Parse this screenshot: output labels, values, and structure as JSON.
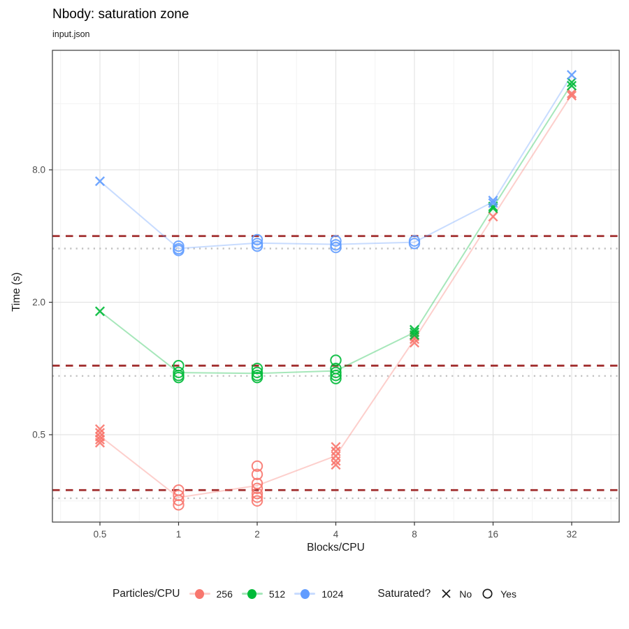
{
  "header": {
    "title": "Nbody: saturation zone",
    "subtitle": "input.json"
  },
  "legend": {
    "series_title": "Particles/CPU",
    "series": [
      {
        "label": "256"
      },
      {
        "label": "512"
      },
      {
        "label": "1024"
      }
    ],
    "saturated_title": "Saturated?",
    "no_label": "No",
    "yes_label": "Yes"
  },
  "chart_data": {
    "type": "scatter",
    "title": "Nbody: saturation zone",
    "subtitle": "input.json",
    "xlabel": "Blocks/CPU",
    "ylabel": "Time (s)",
    "x_scale": "log2",
    "y_scale": "log2",
    "xlim": [
      0.33,
      48
    ],
    "ylim": [
      0.21,
      26
    ],
    "x_ticks": [
      0.5,
      1,
      2,
      4,
      8,
      16,
      32
    ],
    "x_tick_labels": [
      "0.5",
      "1",
      "2",
      "4",
      "8",
      "16",
      "32"
    ],
    "y_ticks": [
      8.0,
      2.0,
      0.5
    ],
    "y_tick_labels": [
      "8.0",
      "2.0",
      "0.5"
    ],
    "y_minor_ticks": [
      16,
      4,
      1,
      0.25
    ],
    "grid": true,
    "legend_position": "bottom",
    "colors": {
      "dashed_reference": "#A02C2C",
      "dotted_reference": "#C2C2C2",
      "grid_major": "#E4E4E4",
      "grid_minor": "#F3F3F3",
      "panel_border": "#3A3A3A",
      "tick_text": "#4D4D4D"
    },
    "marker_legend": {
      "x_marker": "No",
      "o_marker": "Yes"
    },
    "series": [
      {
        "name": "256",
        "color": "#F8766D",
        "dashed_reference_time": 0.28,
        "dotted_reference_time": 0.257,
        "clusters": [
          {
            "x": 0.5,
            "saturated": "No",
            "times": [
              0.53,
              0.51,
              0.49,
              0.475,
              0.46
            ]
          },
          {
            "x": 1,
            "saturated": "Yes",
            "times": [
              0.28,
              0.265,
              0.252,
              0.24
            ]
          },
          {
            "x": 2,
            "saturated": "Yes",
            "times": [
              0.36,
              0.33,
              0.3,
              0.285,
              0.27,
              0.26,
              0.25
            ]
          },
          {
            "x": 4,
            "saturated": "No",
            "times": [
              0.44,
              0.42,
              0.4,
              0.38,
              0.365
            ]
          },
          {
            "x": 8,
            "saturated": "No",
            "times": [
              1.4,
              1.36,
              1.31
            ]
          },
          {
            "x": 16,
            "saturated": "No",
            "times": [
              4.9
            ]
          },
          {
            "x": 32,
            "saturated": "No",
            "times": [
              17.8,
              17.4
            ]
          }
        ]
      },
      {
        "name": "512",
        "color": "#00BA38",
        "dashed_reference_time": 1.03,
        "dotted_reference_time": 0.925,
        "clusters": [
          {
            "x": 0.5,
            "saturated": "No",
            "times": [
              1.82
            ]
          },
          {
            "x": 1,
            "saturated": "Yes",
            "times": [
              1.03,
              0.96,
              0.93,
              0.91
            ]
          },
          {
            "x": 2,
            "saturated": "Yes",
            "times": [
              1.0,
              0.96,
              0.93,
              0.91
            ]
          },
          {
            "x": 4,
            "saturated": "Yes",
            "times": [
              1.09,
              1.0,
              0.96,
              0.93,
              0.9
            ]
          },
          {
            "x": 8,
            "saturated": "No",
            "times": [
              1.5,
              1.46,
              1.42
            ]
          },
          {
            "x": 16,
            "saturated": "No",
            "times": [
              5.45,
              5.35
            ]
          },
          {
            "x": 32,
            "saturated": "No",
            "times": [
              20.0,
              19.3
            ]
          }
        ]
      },
      {
        "name": "1024",
        "color": "#619CFF",
        "dashed_reference_time": 4.0,
        "dotted_reference_time": 3.51,
        "clusters": [
          {
            "x": 0.5,
            "saturated": "No",
            "times": [
              7.1
            ]
          },
          {
            "x": 1,
            "saturated": "Yes",
            "times": [
              3.6,
              3.5,
              3.44
            ]
          },
          {
            "x": 2,
            "saturated": "Yes",
            "times": [
              3.85,
              3.7,
              3.6
            ]
          },
          {
            "x": 4,
            "saturated": "Yes",
            "times": [
              3.8,
              3.65,
              3.55
            ]
          },
          {
            "x": 8,
            "saturated": "Yes",
            "times": [
              3.8,
              3.7
            ]
          },
          {
            "x": 16,
            "saturated": "No",
            "times": [
              5.8,
              5.65
            ]
          },
          {
            "x": 32,
            "saturated": "No",
            "times": [
              21.6
            ]
          }
        ]
      }
    ]
  }
}
